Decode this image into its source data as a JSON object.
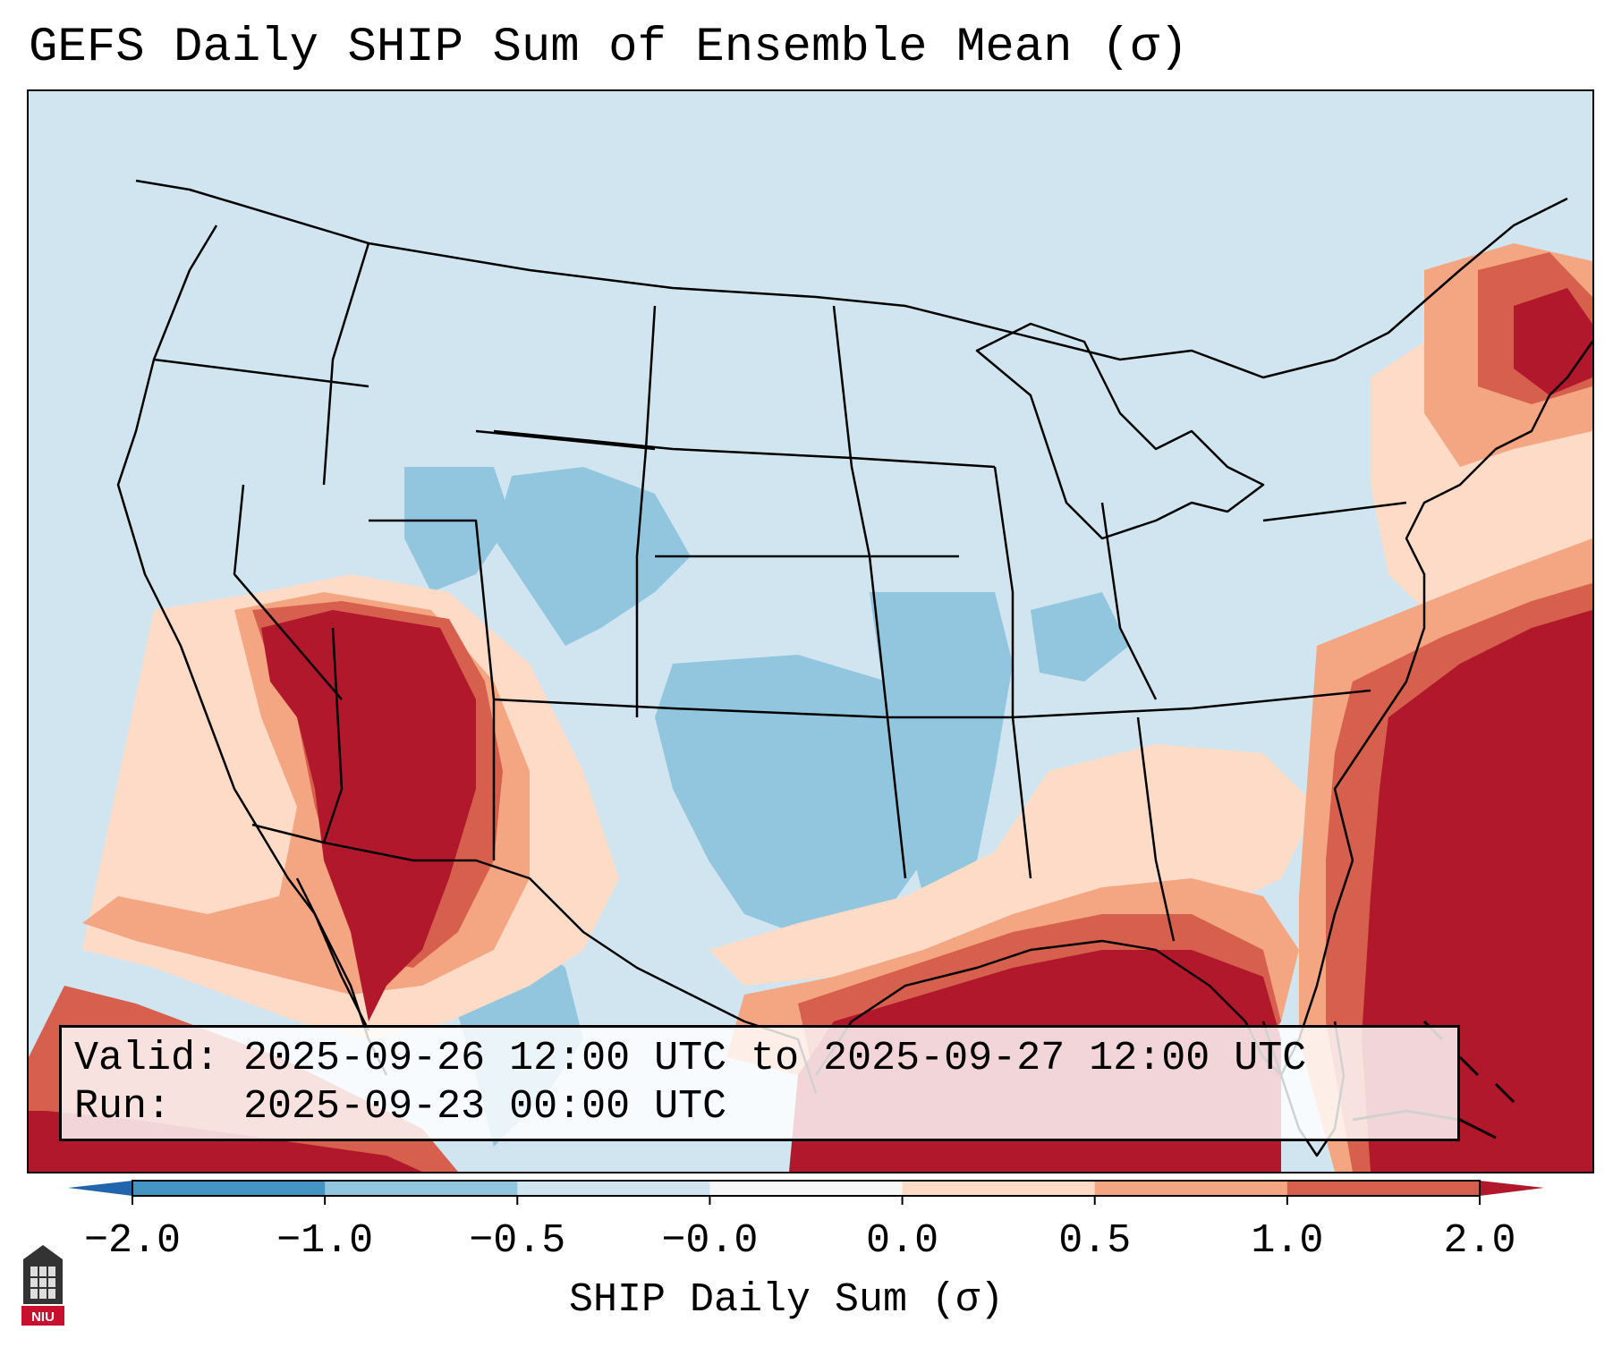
{
  "title": "GEFS Daily SHIP Sum of Ensemble Mean (σ)",
  "info": {
    "valid_label": "Valid:",
    "valid_value": "2025-09-26 12:00 UTC to 2025-09-27 12:00 UTC",
    "run_label": "Run:",
    "run_value": "2025-09-23 00:00 UTC"
  },
  "colorbar": {
    "title": "SHIP Daily Sum (σ)",
    "ticks": [
      "−2.0",
      "−1.0",
      "−0.5",
      "−0.0",
      "0.0",
      "0.5",
      "1.0",
      "2.0"
    ],
    "colors": [
      "#4393c3",
      "#92c5de",
      "#d1e5f0",
      "#f7f7f7",
      "#fddbc7",
      "#f4a582",
      "#d6604d"
    ],
    "under_color": "#2166ac",
    "over_color": "#b2182b"
  },
  "map": {
    "background_color": "#d1e5f0",
    "regions": [
      {
        "name": "southwest-strong-positive",
        "category": "over_2"
      },
      {
        "name": "southwest-moderate-positive",
        "category": "1_to_2"
      },
      {
        "name": "southwest-weak-positive",
        "category": "0_to_0.5"
      },
      {
        "name": "gulf-of-mexico-strong-positive",
        "category": "over_2"
      },
      {
        "name": "western-atlantic-strong-positive",
        "category": "over_2"
      },
      {
        "name": "northeast-positive",
        "category": "1_to_2"
      },
      {
        "name": "southeast-weak-positive",
        "category": "0_to_0.5"
      },
      {
        "name": "plains-negative",
        "category": "-1_to_-0.5"
      },
      {
        "name": "rockies-negative",
        "category": "-1_to_-0.5"
      }
    ]
  },
  "logo": {
    "text": "NIU"
  }
}
